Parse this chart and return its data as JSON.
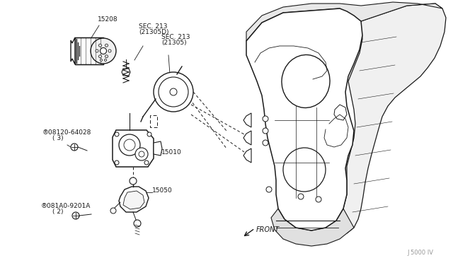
{
  "bg_color": "#ffffff",
  "line_color": "#1a1a1a",
  "gray_color": "#999999",
  "label_texts": {
    "15208": "15208",
    "SEC_213_1a": "SEC. 213",
    "SEC_213_1b": "(21305D)",
    "SEC_213_2a": "SEC. 213",
    "SEC_213_2b": "(21305)",
    "B08120a": "®08120-64028",
    "B08120b": "( 3)",
    "15010": "15010",
    "15050": "15050",
    "B081A0a": "®081A0-9201A",
    "B081A0b": "( 2)",
    "FRONT": "FRONT",
    "J5000": "J 5000 IV"
  }
}
